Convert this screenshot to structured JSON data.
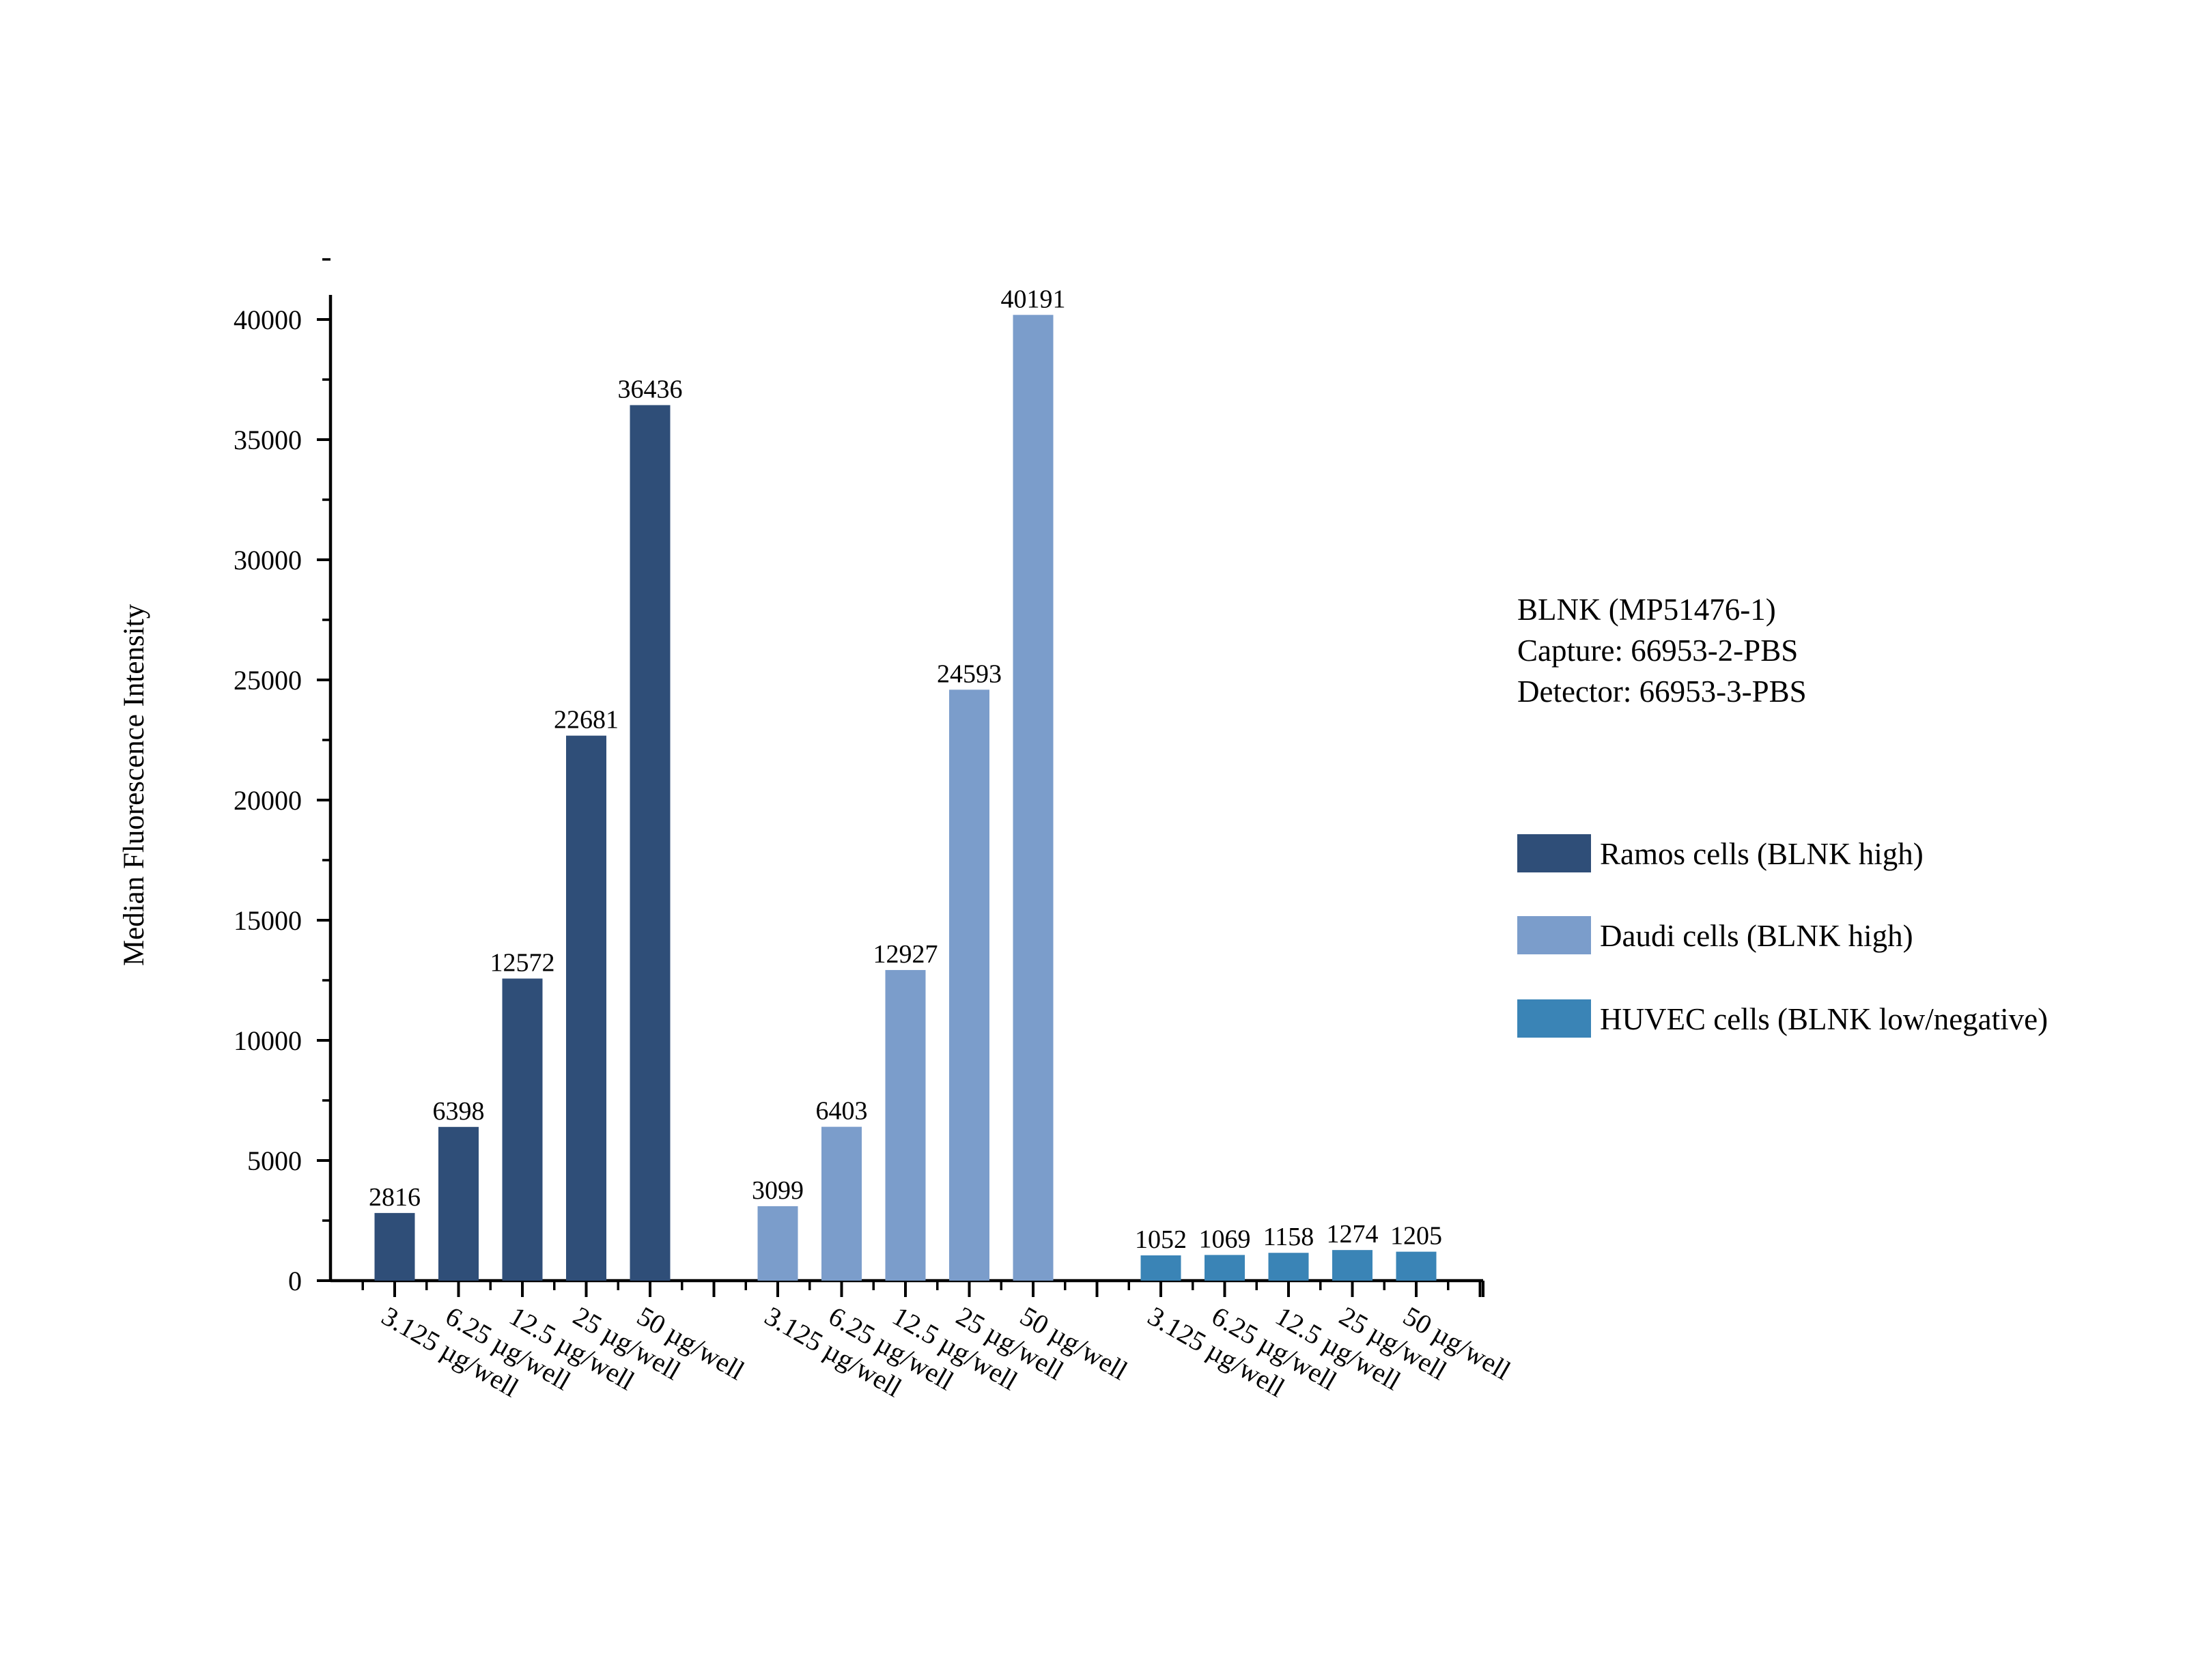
{
  "chart_data": {
    "type": "bar",
    "title": "",
    "xlabel": "",
    "ylabel": "Median Fluorescence Intensity",
    "ylim": [
      0,
      40000
    ],
    "yticks": [
      0,
      5000,
      10000,
      15000,
      20000,
      25000,
      30000,
      35000,
      40000
    ],
    "grid": false,
    "legend_position": "right",
    "categories": [
      "3.125 µg/well",
      "6.25 µg/well",
      "12.5 µg/well",
      "25 µg/well",
      "50 µg/well"
    ],
    "series": [
      {
        "name": "Ramos cells (BLNK high)",
        "color": "#2f4e78",
        "values": [
          2816,
          6398,
          12572,
          22681,
          36436
        ]
      },
      {
        "name": "Daudi cells (BLNK high)",
        "color": "#7b9dcb",
        "values": [
          3099,
          6403,
          12927,
          24593,
          40191
        ]
      },
      {
        "name": "HUVEC cells (BLNK low/negative)",
        "color": "#3a84b6",
        "values": [
          1052,
          1069,
          1158,
          1274,
          1205
        ]
      }
    ],
    "annotation": {
      "lines": [
        "BLNK (MP51476-1)",
        "Capture: 66953-2-PBS",
        "Detector: 66953-3-PBS"
      ]
    }
  }
}
